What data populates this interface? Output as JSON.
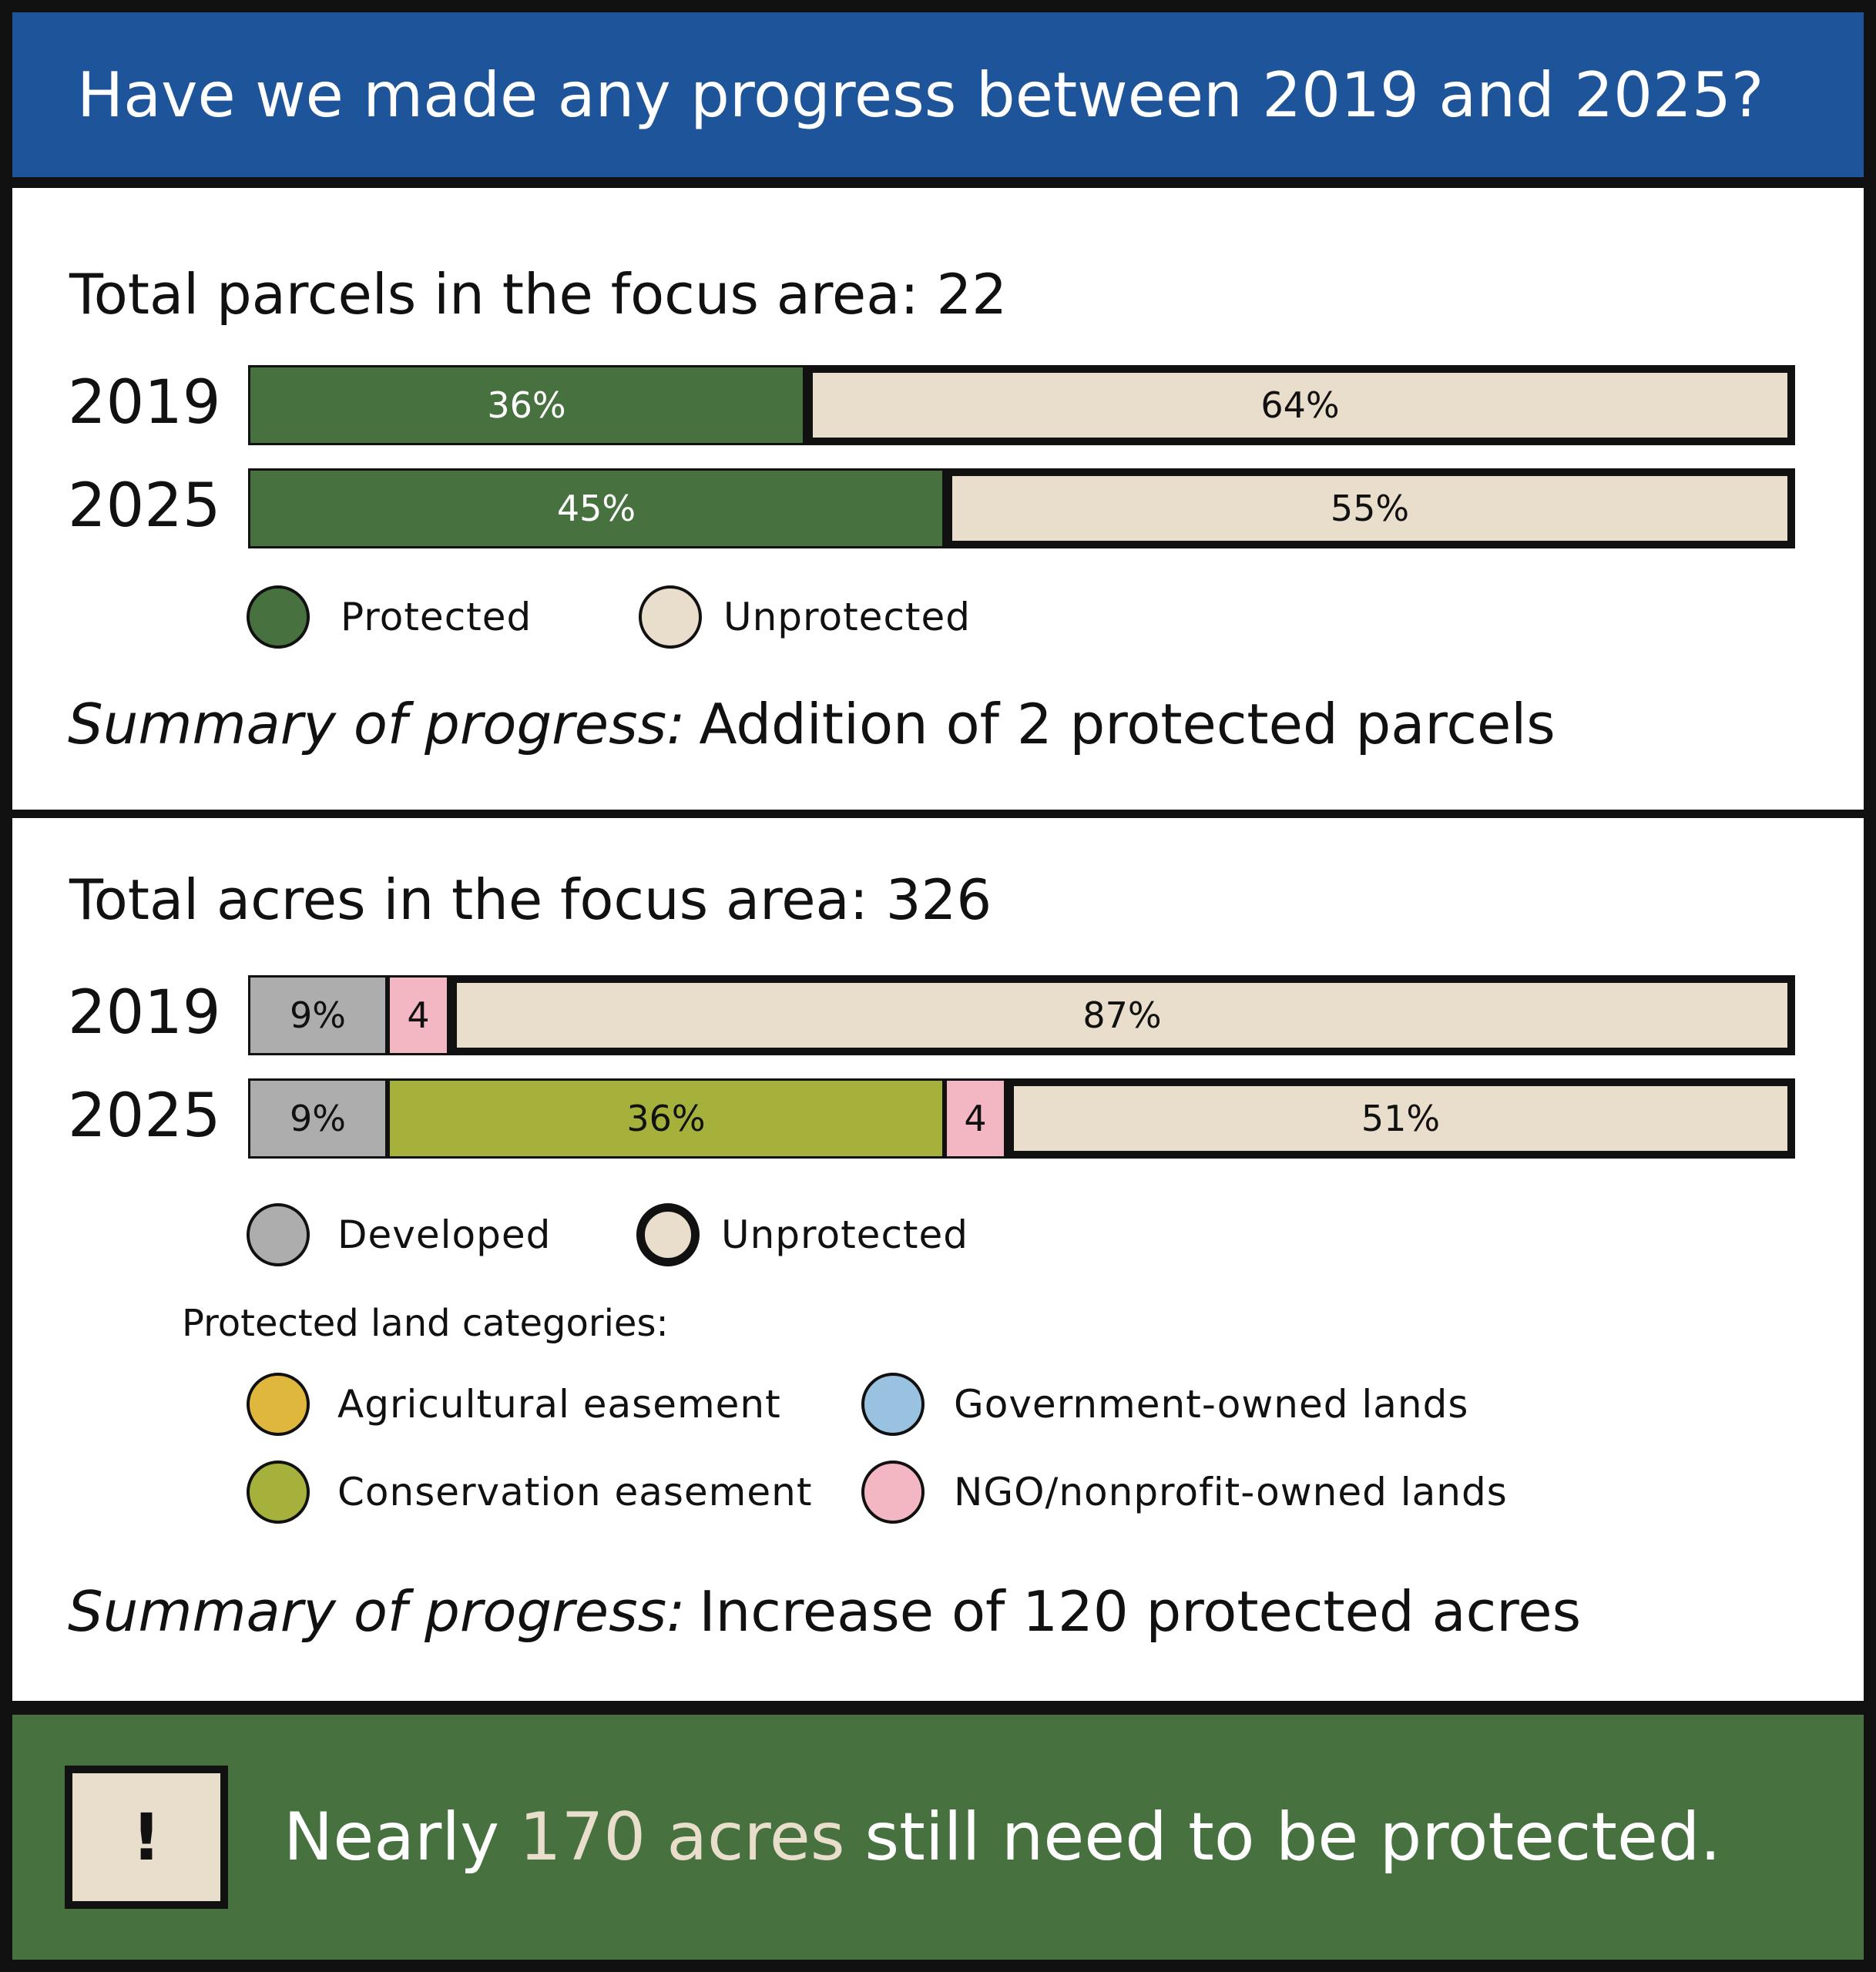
{
  "header": {
    "title": "Have we made any progress between 2019 and 2025?"
  },
  "colors": {
    "banner": "#1e5499",
    "protected": "#477240",
    "unprotected": "#e9ddcc",
    "developed": "#adadad",
    "agricultural": "#e0b73d",
    "conservation": "#a6b13b",
    "government": "#99c2e1",
    "ngo": "#f3b6c3",
    "footer": "#477240",
    "footer_highlight": "#e9ddcc"
  },
  "parcels": {
    "title": "Total parcels in the focus area: 22",
    "legend": {
      "protected": "Protected",
      "unprotected": "Unprotected"
    },
    "summary_lead": "Summary of progress:",
    "summary_text": "Addition of 2 protected parcels"
  },
  "acres": {
    "title": "Total acres in the focus area: 326",
    "legend": {
      "developed": "Developed",
      "unprotected": "Unprotected"
    },
    "categories_title": "Protected land categories:",
    "categories": {
      "agricultural": "Agricultural easement",
      "government": "Government-owned lands",
      "conservation": "Conservation easement",
      "ngo": "NGO/nonprofit-owned lands"
    },
    "summary_lead": "Summary of progress:",
    "summary_text": "Increase of 120 protected acres"
  },
  "footer": {
    "icon": "!",
    "text_before": "Nearly",
    "highlight": "170 acres",
    "text_after": "still need to be protected."
  },
  "chart_data": [
    {
      "type": "bar",
      "orientation": "horizontal",
      "stacked": true,
      "title": "Total parcels in the focus area: 22",
      "categories": [
        "2019",
        "2025"
      ],
      "series": [
        {
          "name": "Protected",
          "key": "protected",
          "values": [
            36,
            45
          ],
          "labels": [
            "36%",
            "45%"
          ]
        },
        {
          "name": "Unprotected",
          "key": "unprotected",
          "values": [
            64,
            55
          ],
          "labels": [
            "64%",
            "55%"
          ]
        }
      ],
      "xlim": [
        0,
        100
      ]
    },
    {
      "type": "bar",
      "orientation": "horizontal",
      "stacked": true,
      "title": "Total acres in the focus area: 326",
      "categories": [
        "2019",
        "2025"
      ],
      "series": [
        {
          "name": "Developed",
          "key": "developed",
          "values": [
            9,
            9
          ],
          "labels": [
            "9%",
            "9%"
          ]
        },
        {
          "name": "Conservation easement",
          "key": "conservation",
          "values": [
            0,
            36
          ],
          "labels": [
            "",
            "36%"
          ]
        },
        {
          "name": "NGO/nonprofit-owned lands",
          "key": "ngo",
          "values": [
            4,
            4
          ],
          "labels": [
            "4",
            "4"
          ]
        },
        {
          "name": "Unprotected",
          "key": "unprotected",
          "values": [
            87,
            51
          ],
          "labels": [
            "87%",
            "51%"
          ]
        }
      ],
      "xlim": [
        0,
        100
      ]
    }
  ]
}
